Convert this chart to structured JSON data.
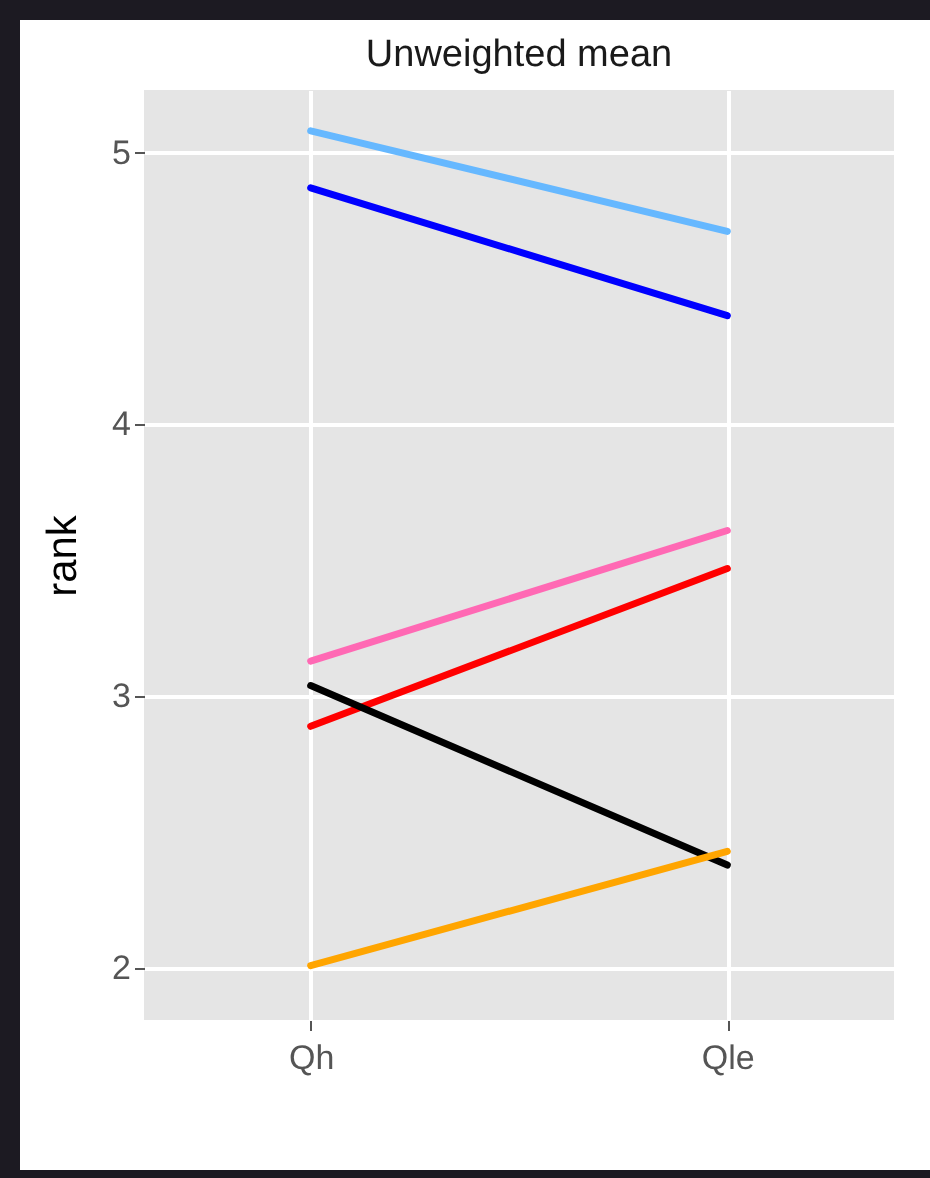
{
  "chart_data": {
    "type": "line",
    "title": "Unweighted mean",
    "ylabel": "rank",
    "categories": [
      "Qh",
      "Qle"
    ],
    "series": [
      {
        "color": "#66b8ff",
        "values": [
          5.08,
          4.71
        ]
      },
      {
        "color": "#0000ff",
        "values": [
          4.87,
          4.4
        ]
      },
      {
        "color": "#ff69b4",
        "values": [
          3.13,
          3.61
        ]
      },
      {
        "color": "#ff0000",
        "values": [
          2.89,
          3.47
        ]
      },
      {
        "color": "#000000",
        "values": [
          3.04,
          2.38
        ]
      },
      {
        "color": "#ffa500",
        "values": [
          2.01,
          2.43
        ]
      }
    ],
    "ylim": [
      1.81,
      5.23
    ],
    "yticks": [
      2,
      3,
      4,
      5
    ],
    "grid": true,
    "legend": false,
    "marker": "none",
    "line_style": "solid"
  }
}
